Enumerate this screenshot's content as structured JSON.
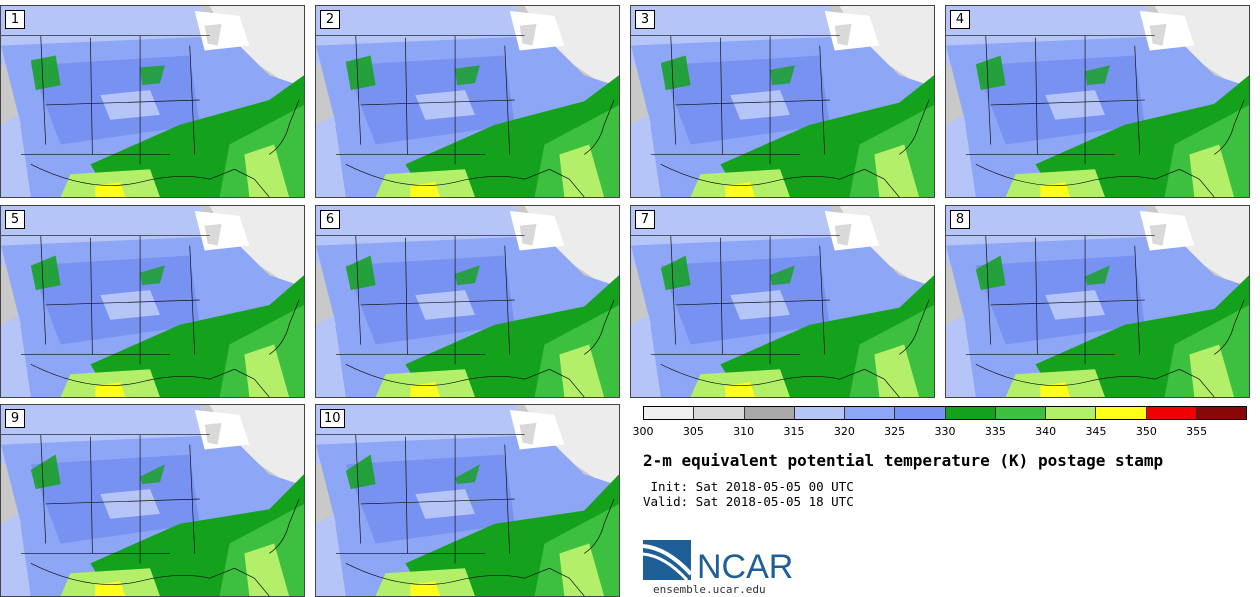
{
  "panels": [
    "1",
    "2",
    "3",
    "4",
    "5",
    "6",
    "7",
    "8",
    "9",
    "10"
  ],
  "colorbar": {
    "colors": [
      "#efefef",
      "#d9d9d9",
      "#a8a8a8",
      "#b6c5f7",
      "#8ea6f6",
      "#7892f2",
      "#14a11c",
      "#3dbf3f",
      "#b4ef6a",
      "#ffff1a",
      "#f00000",
      "#8a0707"
    ],
    "ticks": [
      "300",
      "305",
      "310",
      "315",
      "320",
      "325",
      "330",
      "335",
      "340",
      "345",
      "350",
      "355"
    ]
  },
  "title": "2-m equivalent potential temperature (K) postage stamp",
  "init": " Init: Sat 2018-05-05 00 UTC",
  "valid": "Valid: Sat 2018-05-05 18 UTC",
  "logo": {
    "text": "NCAR",
    "url": "ensemble.ucar.edu",
    "brand_color": "#1f5f97"
  }
}
